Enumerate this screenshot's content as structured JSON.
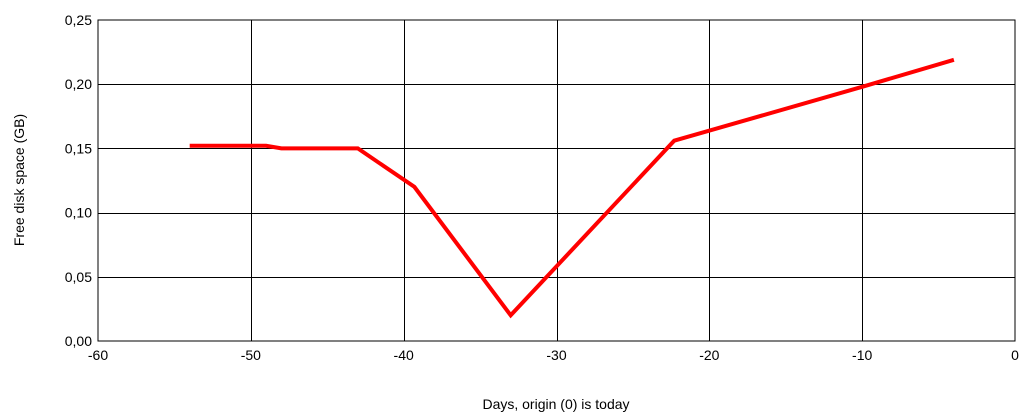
{
  "chart_data": {
    "type": "line",
    "title": "",
    "xlabel": "Days, origin (0) is today",
    "ylabel": "Free disk space (GB)",
    "xlim": [
      -60,
      0
    ],
    "ylim": [
      0,
      0.25
    ],
    "x_ticks": [
      -60,
      -50,
      -40,
      -30,
      -20,
      -10,
      0
    ],
    "x_tick_labels": [
      "-60",
      "-50",
      "-40",
      "-30",
      "-20",
      "-10",
      "0"
    ],
    "y_ticks": [
      0,
      0.05,
      0.1,
      0.15,
      0.2,
      0.25
    ],
    "y_tick_labels": [
      "0,00",
      "0,05",
      "0,10",
      "0,15",
      "0,20",
      "0,25"
    ],
    "grid": true,
    "legend": "none",
    "series": [
      {
        "color": "#ff0000",
        "x": [
          -54,
          -49,
          -48,
          -43,
          -39.3,
          -33,
          -22.3,
          -10,
          -4
        ],
        "y": [
          0.152,
          0.152,
          0.15,
          0.15,
          0.12,
          0.02,
          0.156,
          0.198,
          0.219
        ]
      }
    ]
  }
}
